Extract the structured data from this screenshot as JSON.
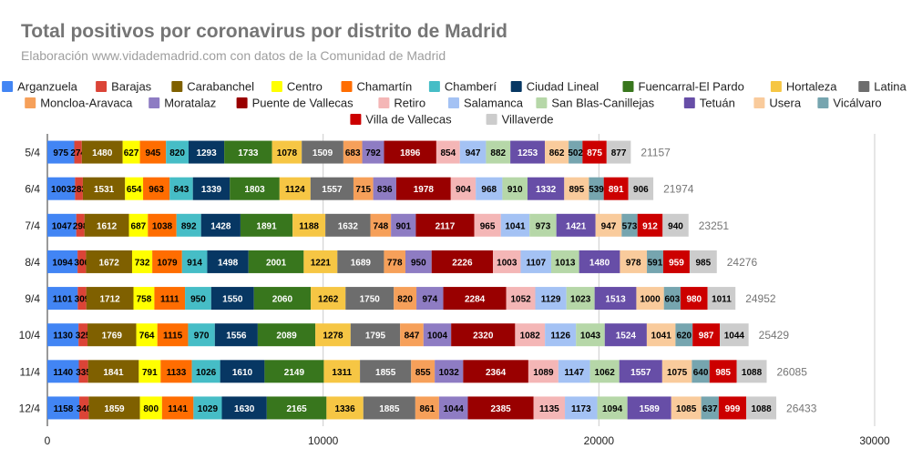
{
  "chart_data": {
    "type": "bar",
    "orientation": "horizontal",
    "stacked": true,
    "title": "Total positivos por coronavirus por distrito de Madrid",
    "subtitle": "Elaboración www.vidademadrid.com con datos de la Comunidad de Madrid",
    "categories": [
      "5/4",
      "6/4",
      "7/4",
      "8/4",
      "9/4",
      "10/4",
      "11/4",
      "12/4"
    ],
    "totals": [
      "21157",
      "21974",
      "23251",
      "24276",
      "24952",
      "25429",
      "26085",
      "26433"
    ],
    "xlim": [
      0,
      30000
    ],
    "xticks": [
      "0",
      "10000",
      "20000",
      "30000"
    ],
    "grid": true,
    "legend_position": "top",
    "series": [
      {
        "name": "Arganzuela",
        "color": "#4285f4",
        "values": [
          975,
          1003,
          1047,
          1094,
          1101,
          1130,
          1140,
          1158
        ]
      },
      {
        "name": "Barajas",
        "color": "#db4437",
        "values": [
          274,
          283,
          298,
          306,
          309,
          325,
          335,
          340
        ]
      },
      {
        "name": "Carabanchel",
        "color": "#7f6000",
        "values": [
          1480,
          1531,
          1612,
          1672,
          1712,
          1769,
          1841,
          1859
        ]
      },
      {
        "name": "Centro",
        "color": "#ffff00",
        "values": [
          627,
          654,
          687,
          732,
          758,
          764,
          791,
          800
        ]
      },
      {
        "name": "Chamartín",
        "color": "#ff6d01",
        "values": [
          945,
          963,
          1038,
          1079,
          1111,
          1115,
          1133,
          1141
        ]
      },
      {
        "name": "Chamberí",
        "color": "#46bdc6",
        "values": [
          820,
          843,
          892,
          914,
          950,
          970,
          1026,
          1029
        ]
      },
      {
        "name": "Ciudad Lineal",
        "color": "#073763",
        "values": [
          1293,
          1339,
          1428,
          1498,
          1550,
          1556,
          1610,
          1630
        ]
      },
      {
        "name": "Fuencarral-El Pardo",
        "color": "#38761d",
        "values": [
          1733,
          1803,
          1891,
          2001,
          2060,
          2089,
          2149,
          2165
        ]
      },
      {
        "name": "Hortaleza",
        "color": "#f6c644",
        "values": [
          1078,
          1124,
          1188,
          1221,
          1262,
          1278,
          1311,
          1336
        ]
      },
      {
        "name": "Latina",
        "color": "#6d6d6d",
        "values": [
          1509,
          1557,
          1632,
          1689,
          1750,
          1795,
          1855,
          1885
        ]
      },
      {
        "name": "Moncloa-Aravaca",
        "color": "#f6a05a",
        "values": [
          683,
          715,
          748,
          778,
          820,
          847,
          855,
          861
        ]
      },
      {
        "name": "Moratalaz",
        "color": "#8e7cc3",
        "values": [
          792,
          836,
          901,
          950,
          974,
          1004,
          1032,
          1044
        ]
      },
      {
        "name": "Puente de Vallecas",
        "color": "#990000",
        "values": [
          1896,
          1978,
          2117,
          2226,
          2284,
          2320,
          2364,
          2385
        ]
      },
      {
        "name": "Retiro",
        "color": "#f4b6b6",
        "values": [
          854,
          904,
          965,
          1003,
          1052,
          1082,
          1089,
          1135
        ]
      },
      {
        "name": "Salamanca",
        "color": "#a4c2f4",
        "values": [
          947,
          968,
          1041,
          1107,
          1129,
          1126,
          1147,
          1173
        ]
      },
      {
        "name": "San Blas-Canillejas",
        "color": "#b6d7a8",
        "values": [
          882,
          910,
          973,
          1013,
          1023,
          1043,
          1062,
          1094
        ]
      },
      {
        "name": "Tetuán",
        "color": "#674ea7",
        "values": [
          1253,
          1332,
          1421,
          1480,
          1513,
          1524,
          1557,
          1589
        ]
      },
      {
        "name": "Usera",
        "color": "#f9cb9c",
        "values": [
          862,
          895,
          947,
          978,
          1000,
          1041,
          1075,
          1085
        ]
      },
      {
        "name": "Vicálvaro",
        "color": "#76a5af",
        "values": [
          502,
          539,
          573,
          591,
          603,
          620,
          640,
          637
        ]
      },
      {
        "name": "Villa de Vallecas",
        "color": "#cc0000",
        "values": [
          875,
          891,
          912,
          959,
          980,
          987,
          985,
          999
        ]
      },
      {
        "name": "Villaverde",
        "color": "#cccccc",
        "values": [
          877,
          906,
          940,
          985,
          1011,
          1044,
          1088,
          1088
        ]
      }
    ]
  }
}
